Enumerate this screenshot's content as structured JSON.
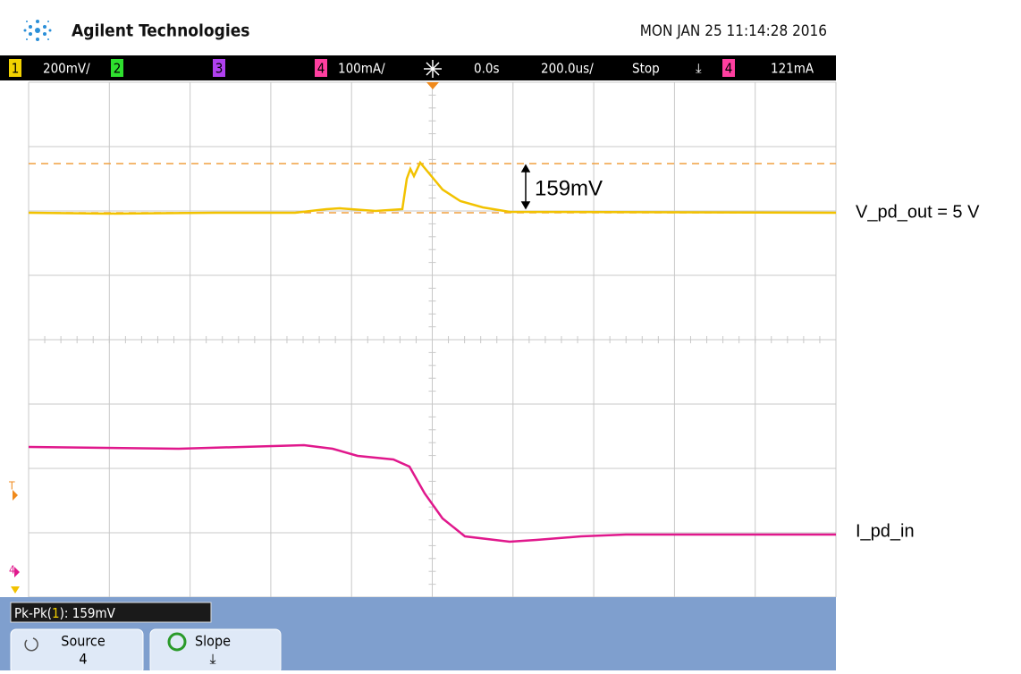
{
  "header": {
    "brand": "Agilent Technologies",
    "datetime": "MON JAN 25 11:14:28 2016"
  },
  "status": {
    "ch1": "1",
    "ch1_scale": "200mV/",
    "ch2": "2",
    "ch3": "3",
    "ch4": "4",
    "ch4_scale": "100mA/",
    "delay": "0.0s",
    "timebase": "200.0us/",
    "run_state": "Stop",
    "trigger_source": "4",
    "trigger_level": "121mA"
  },
  "screen": {
    "trigger_marker": "T",
    "ch4_marker": "4",
    "annotation": "159mV"
  },
  "labels": {
    "trace1": "V_pd_out = 5 V",
    "trace4": "I_pd_in"
  },
  "measurement": {
    "prefix": "Pk-Pk(",
    "channel": "1",
    "suffix": "): 159mV"
  },
  "softkeys": [
    {
      "label": "Source",
      "value": "4"
    },
    {
      "label": "Slope",
      "value": "⤓"
    }
  ]
}
